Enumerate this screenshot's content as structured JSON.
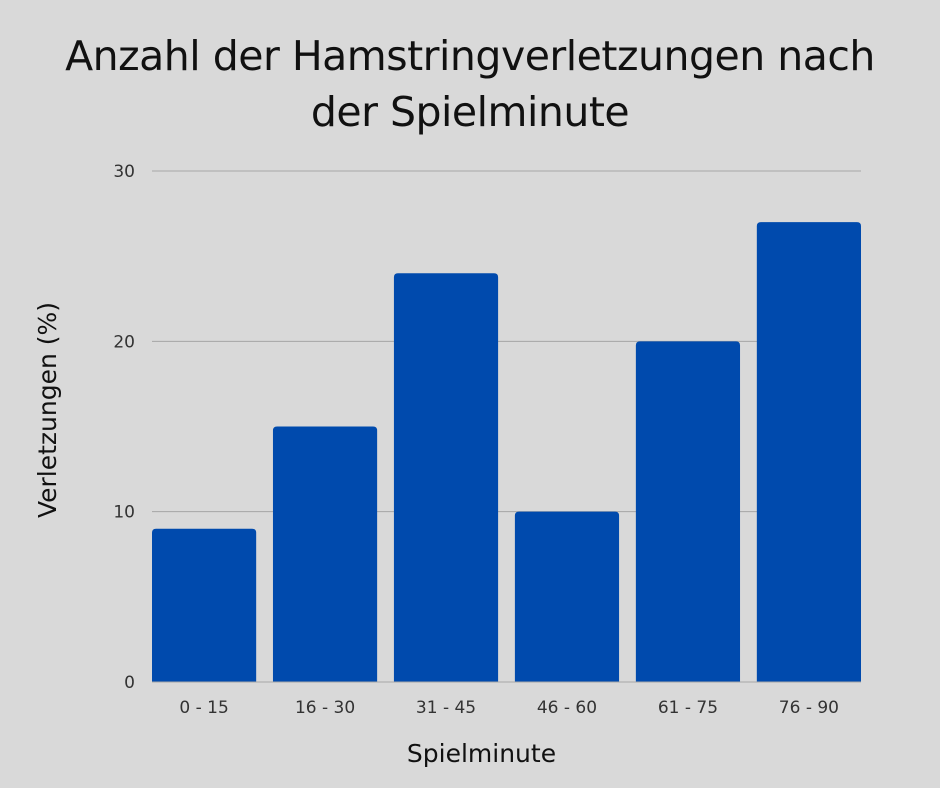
{
  "chart_data": {
    "type": "bar",
    "title_lines": [
      "Anzahl der Hamstringverletzungen nach",
      "der Spielminute"
    ],
    "xlabel": "Spielminute",
    "ylabel": "Verletzungen (%)",
    "categories": [
      "0 - 15",
      "16 - 30",
      "31 - 45",
      "46 - 60",
      "61 - 75",
      "76 - 90"
    ],
    "values": [
      9,
      15,
      24,
      10,
      20,
      27
    ],
    "ylim": [
      0,
      30
    ],
    "yticks": [
      0,
      10,
      20,
      30
    ],
    "grid": true,
    "bar_color": "#004aad",
    "grid_color": "#a6a6a6"
  }
}
